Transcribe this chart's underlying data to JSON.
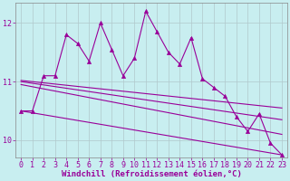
{
  "x": [
    0,
    1,
    2,
    3,
    4,
    5,
    6,
    7,
    8,
    9,
    10,
    11,
    12,
    13,
    14,
    15,
    16,
    17,
    18,
    19,
    20,
    21,
    22,
    23
  ],
  "y_main": [
    10.5,
    10.5,
    11.1,
    11.1,
    11.8,
    11.65,
    11.35,
    12.0,
    11.55,
    11.1,
    11.4,
    12.2,
    11.85,
    11.5,
    11.3,
    11.75,
    11.05,
    10.9,
    10.75,
    10.4,
    10.15,
    10.45,
    9.95,
    9.75
  ],
  "trend_lines": [
    {
      "x0": 0,
      "y0": 11.02,
      "x1": 23,
      "y1": 10.55
    },
    {
      "x0": 0,
      "y0": 11.0,
      "x1": 23,
      "y1": 10.35
    },
    {
      "x0": 0,
      "y0": 10.95,
      "x1": 23,
      "y1": 10.1
    },
    {
      "x0": 0,
      "y0": 10.5,
      "x1": 23,
      "y1": 9.75
    }
  ],
  "color": "#990099",
  "bg_color": "#c8eef0",
  "grid_color": "#b0c8cc",
  "xlabel": "Windchill (Refroidissement éolien,°C)",
  "yticks": [
    10,
    11,
    12
  ],
  "xticks": [
    0,
    1,
    2,
    3,
    4,
    5,
    6,
    7,
    8,
    9,
    10,
    11,
    12,
    13,
    14,
    15,
    16,
    17,
    18,
    19,
    20,
    21,
    22,
    23
  ],
  "xlim": [
    -0.5,
    23.5
  ],
  "ylim": [
    9.7,
    12.35
  ],
  "marker": "^",
  "markersize": 3,
  "linewidth": 0.8,
  "font_color": "#990099",
  "xlabel_fontsize": 6.5,
  "tick_fontsize": 6
}
